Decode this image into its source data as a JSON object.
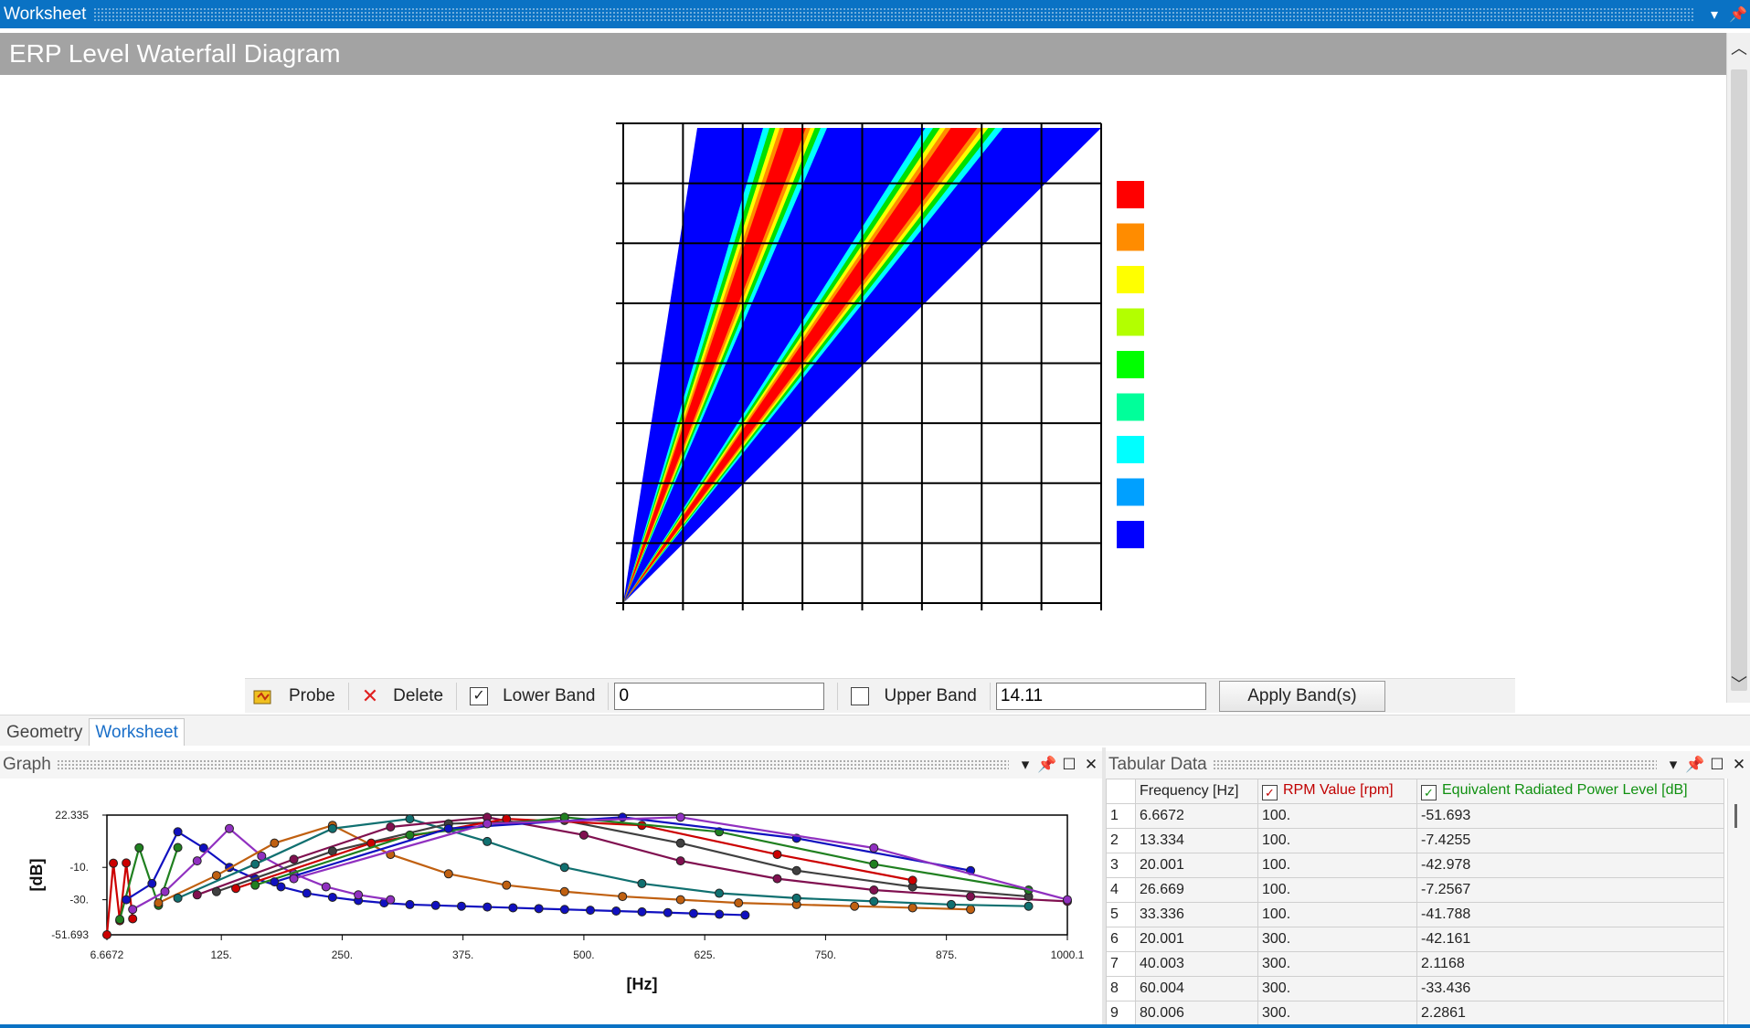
{
  "window": {
    "title": "Worksheet",
    "controls": [
      "▾",
      "📌"
    ]
  },
  "header": {
    "title": "ERP Level Waterfall Diagram"
  },
  "scroll": {
    "up": "︿",
    "down": "﹀"
  },
  "waterfall": {
    "legend_colors": [
      "#ff0000",
      "#ff8c00",
      "#ffff00",
      "#b3ff00",
      "#00ff00",
      "#00ff9a",
      "#00ffff",
      "#00a0ff",
      "#0000ff"
    ],
    "colors": {
      "base": "#0000ff",
      "cyan": "#00ffff",
      "green": "#00e000",
      "yellow": "#ffff00",
      "orange": "#ff8c00",
      "red": "#ff0000"
    }
  },
  "probe_bar": {
    "probe_label": "Probe",
    "delete_label": "Delete",
    "lower_band_label": "Lower Band",
    "lower_band_checked": true,
    "lower_band_value": "0",
    "upper_band_label": "Upper Band",
    "upper_band_checked": false,
    "upper_band_value": "14.11",
    "apply_label": "Apply Band(s)"
  },
  "tabs": [
    {
      "label": "Geometry",
      "active": false
    },
    {
      "label": "Worksheet",
      "active": true
    }
  ],
  "graph_pane": {
    "title": "Graph",
    "controls": [
      "▾",
      "📌",
      "☐",
      "✕"
    ]
  },
  "table_pane": {
    "title": "Tabular Data",
    "controls": [
      "▾",
      "📌",
      "☐",
      "✕"
    ]
  },
  "chart_data": {
    "type": "line",
    "xlabel": "[Hz]",
    "ylabel": "[dB]",
    "xlim": [
      6.6672,
      1000.1
    ],
    "ylim": [
      -51.693,
      22.335
    ],
    "x_ticks": [
      "6.6672",
      "125.",
      "250.",
      "375.",
      "500.",
      "625.",
      "750.",
      "875.",
      "1000.1"
    ],
    "y_ticks": [
      "22.335",
      "-10.",
      "-30.",
      "-51.693"
    ],
    "series_colors": [
      "#cc0000",
      "#208020",
      "#1010c0",
      "#9030c0",
      "#c06010",
      "#107070",
      "#801050",
      "#404040"
    ],
    "series": [
      {
        "x": [
          6.6672,
          13.334,
          20.001,
          26.669,
          33.336
        ],
        "y": [
          -51.693,
          -7.4255,
          -42.978,
          -7.2567,
          -41.788
        ]
      },
      {
        "x": [
          20.001,
          40.003,
          60.004,
          80.006
        ],
        "y": [
          -42.161,
          2.1168,
          -33.436,
          2.2861
        ]
      },
      {
        "x": [
          26.7,
          53.3,
          80.0,
          106.7,
          133.4,
          160.0,
          186.7,
          213.4,
          240.0,
          266.7,
          293.4,
          320.0,
          346.7,
          373.4,
          400.1,
          426.7,
          453.4,
          480.1,
          506.7,
          533.4,
          560.1,
          586.8,
          613.4,
          640.1,
          666.8
        ],
        "y": [
          -30,
          -20,
          12,
          2,
          -10,
          -17,
          -22,
          -26,
          -28.5,
          -30.5,
          -32,
          -33,
          -33.5,
          -34,
          -34.5,
          -35,
          -35.5,
          -36,
          -36.5,
          -37,
          -37.5,
          -38,
          -38.5,
          -39,
          -39.5
        ]
      },
      {
        "x": [
          33.3,
          66.7,
          100.0,
          133.3,
          166.7,
          200.0,
          233.3,
          266.7,
          300.0
        ],
        "y": [
          -36,
          -25,
          -6,
          14,
          -3,
          -14,
          -22,
          -27,
          -30
        ]
      },
      {
        "x": [
          60.0,
          120.0,
          180.0,
          240.0,
          300.0,
          360.0,
          420.0,
          480.0,
          540.0,
          600.0,
          660.0,
          720.0,
          780.0,
          840.0,
          900.0
        ],
        "y": [
          -32,
          -15,
          5,
          16,
          -2,
          -14,
          -21,
          -25,
          -28,
          -30,
          -32,
          -33,
          -34,
          -35,
          -36
        ]
      },
      {
        "x": [
          80.0,
          160.0,
          240.0,
          320.0,
          400.0,
          480.0,
          560.0,
          640.0,
          720.0,
          800.0,
          880.0,
          960.0
        ],
        "y": [
          -29,
          -8,
          14,
          20,
          6,
          -10,
          -20,
          -26,
          -29,
          -31,
          -33,
          -34
        ]
      },
      {
        "x": [
          100.0,
          200.0,
          300.0,
          400.0,
          500.0,
          600.0,
          700.0,
          800.0,
          900.0,
          1000.1
        ],
        "y": [
          -27,
          -5,
          15,
          21,
          10,
          -6,
          -17,
          -24,
          -28,
          -31
        ]
      },
      {
        "x": [
          120.0,
          240.0,
          360.0,
          480.0,
          600.0,
          720.0,
          840.0,
          960.0
        ],
        "y": [
          -25,
          0,
          17,
          19,
          5,
          -12,
          -22,
          -28
        ]
      },
      {
        "x": [
          140.0,
          280.0,
          420.0,
          560.0,
          700.0,
          840.0
        ],
        "y": [
          -23,
          5,
          20,
          16,
          -2,
          -18
        ]
      },
      {
        "x": [
          160.0,
          320.0,
          480.0,
          640.0,
          800.0,
          960.0
        ],
        "y": [
          -21,
          10,
          21,
          12,
          -8,
          -24
        ]
      },
      {
        "x": [
          180.0,
          360.0,
          540.0,
          720.0,
          900.0
        ],
        "y": [
          -19,
          14,
          21,
          8,
          -12
        ]
      },
      {
        "x": [
          200.0,
          400.0,
          600.0,
          800.0,
          1000.1
        ],
        "y": [
          -17,
          17,
          21,
          2,
          -30
        ]
      }
    ]
  },
  "table": {
    "headers": {
      "freq": "Frequency [Hz]",
      "rpm": "RPM Value [rpm]",
      "erp": "Equivalent Radiated Power Level [dB]"
    },
    "rows": [
      [
        "1",
        "6.6672",
        "100.",
        "-51.693"
      ],
      [
        "2",
        "13.334",
        "100.",
        "-7.4255"
      ],
      [
        "3",
        "20.001",
        "100.",
        "-42.978"
      ],
      [
        "4",
        "26.669",
        "100.",
        "-7.2567"
      ],
      [
        "5",
        "33.336",
        "100.",
        "-41.788"
      ],
      [
        "6",
        "20.001",
        "300.",
        "-42.161"
      ],
      [
        "7",
        "40.003",
        "300.",
        "2.1168"
      ],
      [
        "8",
        "60.004",
        "300.",
        "-33.436"
      ],
      [
        "9",
        "80.006",
        "300.",
        "2.2861"
      ]
    ]
  }
}
